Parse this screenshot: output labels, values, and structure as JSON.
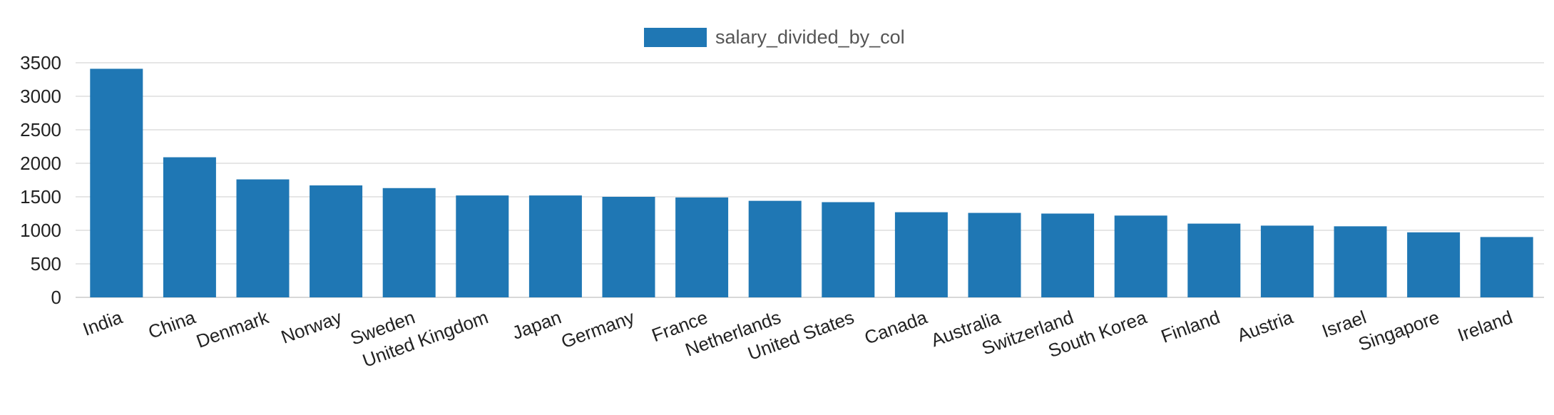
{
  "chart_data": {
    "type": "bar",
    "categories": [
      "India",
      "China",
      "Denmark",
      "Norway",
      "Sweden",
      "United Kingdom",
      "Japan",
      "Germany",
      "France",
      "Netherlands",
      "United States",
      "Canada",
      "Australia",
      "Switzerland",
      "South Korea",
      "Finland",
      "Austria",
      "Israel",
      "Singapore",
      "Ireland"
    ],
    "series": [
      {
        "name": "salary_divided_by_col",
        "values": [
          3410,
          2090,
          1760,
          1670,
          1630,
          1520,
          1520,
          1500,
          1490,
          1440,
          1420,
          1270,
          1260,
          1250,
          1220,
          1100,
          1070,
          1060,
          970,
          900
        ]
      }
    ],
    "yticks": [
      "0",
      "500",
      "1000",
      "1500",
      "2000",
      "2500",
      "3000",
      "3500"
    ],
    "ylim": [
      0,
      3500
    ],
    "title": "",
    "xlabel": "",
    "ylabel": "",
    "grid": true,
    "legend_position": "top-center",
    "colors": {
      "bar": "#1f77b4",
      "grid": "#dddddd",
      "axis": "#cccccc"
    }
  }
}
